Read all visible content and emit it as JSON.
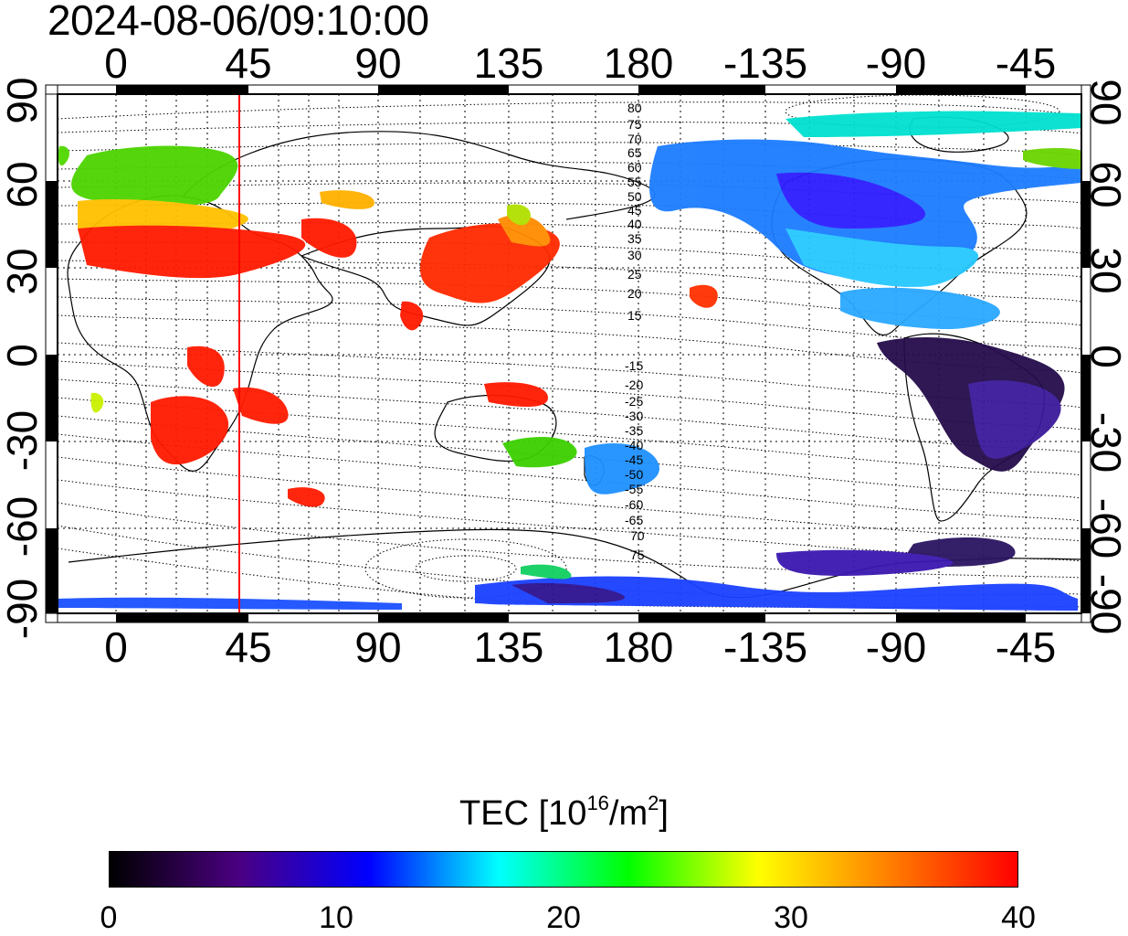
{
  "timestamp": "2024-08-06/09:10:00",
  "lon_ticks": [
    "0",
    "45",
    "90",
    "135",
    "180",
    "-135",
    "-90",
    "-45"
  ],
  "lat_ticks": [
    "90",
    "60",
    "30",
    "0",
    "-30",
    "-60",
    "-90"
  ],
  "colorbar": {
    "title_prefix": "TEC  [10",
    "title_exp": "16",
    "title_mid": "/m",
    "title_exp2": "2",
    "title_suffix": "]",
    "min": 0,
    "max": 40,
    "tick_labels": [
      "0",
      "10",
      "20",
      "30",
      "40"
    ],
    "colormap_stops": [
      "#000000",
      "#4b0082",
      "#0000ff",
      "#00ffff",
      "#00ff00",
      "#ffff00",
      "#ff8000",
      "#ff0000"
    ]
  },
  "magnetic_lat_labels_north": [
    "80",
    "75",
    "70",
    "65",
    "60",
    "55",
    "50",
    "45",
    "40",
    "35",
    "30",
    "25",
    "20",
    "15"
  ],
  "magnetic_lat_labels_south": [
    "-15",
    "-20",
    "-25",
    "-30",
    "-35",
    "-40",
    "-45",
    "-50",
    "-55",
    "-60",
    "-65",
    "70",
    "75"
  ],
  "marker_longitude": 42,
  "colors": {
    "marker_line": "#ff0000",
    "frame": "#000000"
  }
}
